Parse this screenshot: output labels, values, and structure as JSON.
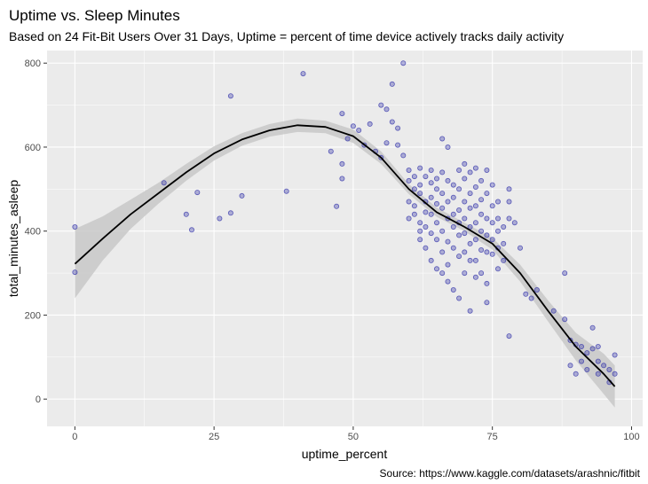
{
  "chart_data": {
    "type": "scatter",
    "title": "Uptime vs. Sleep Minutes",
    "subtitle": "Based on 24 Fit-Bit Users Over 31 Days, Uptime = percent of time device actively tracks daily activity",
    "caption": "Source: https://www.kaggle.com/datasets/arashnic/fitbit",
    "xlabel": "uptime_percent",
    "ylabel": "total_minutes_asleep",
    "xlim": [
      -5,
      102
    ],
    "ylim": [
      -65,
      830
    ],
    "x_ticks": [
      0,
      25,
      50,
      75,
      100
    ],
    "y_ticks": [
      0,
      200,
      400,
      600,
      800
    ],
    "grid": true,
    "background": "#ebebeb",
    "colors": {
      "points": "#3333aa",
      "smooth_line": "#000000",
      "ribbon": "#c8c8c8"
    },
    "series": [
      {
        "type": "points",
        "points": [
          [
            0,
            410
          ],
          [
            0,
            302
          ],
          [
            16,
            515
          ],
          [
            20,
            440
          ],
          [
            21,
            403
          ],
          [
            22,
            492
          ],
          [
            26,
            430
          ],
          [
            28,
            443
          ],
          [
            28,
            722
          ],
          [
            30,
            484
          ],
          [
            38,
            495
          ],
          [
            41,
            775
          ],
          [
            46,
            590
          ],
          [
            47,
            459
          ],
          [
            48,
            680
          ],
          [
            48,
            525
          ],
          [
            48,
            560
          ],
          [
            49,
            620
          ],
          [
            50,
            650
          ],
          [
            51,
            640
          ],
          [
            52,
            605
          ],
          [
            53,
            655
          ],
          [
            54,
            590
          ],
          [
            55,
            575
          ],
          [
            55,
            700
          ],
          [
            56,
            690
          ],
          [
            56,
            610
          ],
          [
            57,
            750
          ],
          [
            57,
            660
          ],
          [
            58,
            645
          ],
          [
            58,
            605
          ],
          [
            59,
            800
          ],
          [
            59,
            580
          ],
          [
            60,
            545
          ],
          [
            60,
            520
          ],
          [
            60,
            430
          ],
          [
            60,
            470
          ],
          [
            61,
            530
          ],
          [
            61,
            500
          ],
          [
            61,
            460
          ],
          [
            61,
            440
          ],
          [
            62,
            550
          ],
          [
            62,
            510
          ],
          [
            62,
            490
          ],
          [
            62,
            420
          ],
          [
            62,
            400
          ],
          [
            62,
            380
          ],
          [
            63,
            530
          ],
          [
            63,
            470
          ],
          [
            63,
            445
          ],
          [
            63,
            410
          ],
          [
            63,
            360
          ],
          [
            64,
            545
          ],
          [
            64,
            515
          ],
          [
            64,
            480
          ],
          [
            64,
            440
          ],
          [
            64,
            395
          ],
          [
            64,
            330
          ],
          [
            65,
            525
          ],
          [
            65,
            500
          ],
          [
            65,
            465
          ],
          [
            65,
            420
          ],
          [
            65,
            380
          ],
          [
            65,
            310
          ],
          [
            66,
            620
          ],
          [
            66,
            540
          ],
          [
            66,
            490
          ],
          [
            66,
            455
          ],
          [
            66,
            400
          ],
          [
            66,
            350
          ],
          [
            66,
            300
          ],
          [
            67,
            600
          ],
          [
            67,
            520
          ],
          [
            67,
            470
          ],
          [
            67,
            430
          ],
          [
            67,
            375
          ],
          [
            67,
            320
          ],
          [
            67,
            280
          ],
          [
            68,
            510
          ],
          [
            68,
            480
          ],
          [
            68,
            440
          ],
          [
            68,
            410
          ],
          [
            68,
            360
          ],
          [
            68,
            260
          ],
          [
            69,
            545
          ],
          [
            69,
            500
          ],
          [
            69,
            450
          ],
          [
            69,
            420
          ],
          [
            69,
            390
          ],
          [
            69,
            340
          ],
          [
            69,
            240
          ],
          [
            70,
            560
          ],
          [
            70,
            525
          ],
          [
            70,
            470
          ],
          [
            70,
            430
          ],
          [
            70,
            395
          ],
          [
            70,
            350
          ],
          [
            70,
            300
          ],
          [
            71,
            540
          ],
          [
            71,
            490
          ],
          [
            71,
            455
          ],
          [
            71,
            410
          ],
          [
            71,
            370
          ],
          [
            71,
            330
          ],
          [
            71,
            210
          ],
          [
            72,
            550
          ],
          [
            72,
            505
          ],
          [
            72,
            460
          ],
          [
            72,
            420
          ],
          [
            72,
            380
          ],
          [
            72,
            330
          ],
          [
            72,
            290
          ],
          [
            73,
            520
          ],
          [
            73,
            475
          ],
          [
            73,
            440
          ],
          [
            73,
            400
          ],
          [
            73,
            355
          ],
          [
            73,
            300
          ],
          [
            74,
            545
          ],
          [
            74,
            490
          ],
          [
            74,
            430
          ],
          [
            74,
            390
          ],
          [
            74,
            350
          ],
          [
            74,
            275
          ],
          [
            74,
            230
          ],
          [
            75,
            510
          ],
          [
            75,
            460
          ],
          [
            75,
            420
          ],
          [
            75,
            380
          ],
          [
            75,
            345
          ],
          [
            76,
            470
          ],
          [
            76,
            430
          ],
          [
            76,
            400
          ],
          [
            76,
            360
          ],
          [
            76,
            310
          ],
          [
            77,
            410
          ],
          [
            77,
            370
          ],
          [
            77,
            330
          ],
          [
            78,
            470
          ],
          [
            78,
            500
          ],
          [
            78,
            430
          ],
          [
            78,
            150
          ],
          [
            79,
            420
          ],
          [
            80,
            360
          ],
          [
            81,
            250
          ],
          [
            82,
            240
          ],
          [
            83,
            260
          ],
          [
            86,
            210
          ],
          [
            88,
            300
          ],
          [
            88,
            190
          ],
          [
            89,
            140
          ],
          [
            89,
            80
          ],
          [
            90,
            130
          ],
          [
            90,
            60
          ],
          [
            91,
            125
          ],
          [
            92,
            110
          ],
          [
            93,
            120
          ],
          [
            93,
            170
          ],
          [
            94,
            90
          ],
          [
            94,
            125
          ],
          [
            95,
            80
          ],
          [
            96,
            70
          ],
          [
            96,
            40
          ],
          [
            97,
            105
          ],
          [
            97,
            60
          ],
          [
            91,
            90
          ],
          [
            92,
            70
          ],
          [
            94,
            60
          ]
        ]
      },
      {
        "type": "smooth",
        "x": [
          0,
          5,
          10,
          15,
          20,
          25,
          30,
          35,
          40,
          45,
          50,
          55,
          60,
          65,
          70,
          75,
          80,
          85,
          90,
          95,
          97
        ],
        "y": [
          322,
          382,
          440,
          490,
          540,
          585,
          618,
          640,
          652,
          648,
          626,
          575,
          500,
          445,
          410,
          370,
          300,
          210,
          125,
          60,
          30
        ],
        "lower": [
          240,
          330,
          405,
          465,
          520,
          568,
          603,
          625,
          636,
          633,
          610,
          560,
          488,
          434,
          400,
          356,
          280,
          185,
          92,
          12,
          -20
        ],
        "upper": [
          405,
          435,
          475,
          515,
          560,
          602,
          633,
          655,
          668,
          663,
          642,
          590,
          512,
          456,
          420,
          384,
          320,
          235,
          158,
          108,
          80
        ]
      }
    ]
  }
}
